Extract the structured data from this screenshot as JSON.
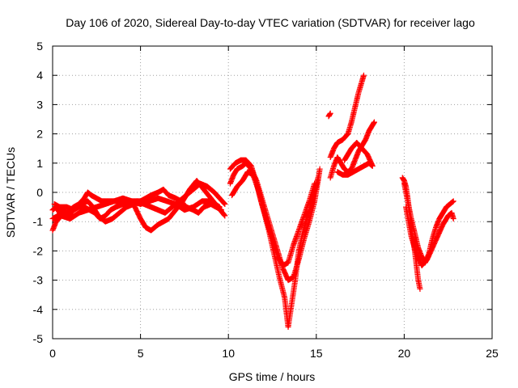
{
  "chart_data": {
    "type": "scatter",
    "title": "Day 106 of 2020, Sidereal Day-to-day VTEC variation (SDTVAR) for receiver lago",
    "xlabel": "GPS time / hours",
    "ylabel": "SDTVAR / TECUs",
    "xlim": [
      0,
      25
    ],
    "ylim": [
      -5,
      5
    ],
    "xticks": [
      "0",
      "5",
      "10",
      "15",
      "20",
      "25"
    ],
    "yticks": [
      "-5",
      "-4",
      "-3",
      "-2",
      "-1",
      "0",
      "1",
      "2",
      "3",
      "4",
      "5"
    ],
    "grid": true,
    "marker": "+",
    "color": "#ff0000",
    "series": [
      {
        "values": [
          [
            0.0,
            -0.6
          ],
          [
            0.2,
            -0.5
          ],
          [
            0.4,
            -0.7
          ],
          [
            0.6,
            -0.6
          ],
          [
            0.8,
            -0.7
          ],
          [
            1.0,
            -0.6
          ],
          [
            1.2,
            -0.5
          ],
          [
            1.5,
            -0.4
          ],
          [
            1.8,
            -0.2
          ],
          [
            2.0,
            0.0
          ],
          [
            2.2,
            -0.1
          ],
          [
            2.5,
            -0.2
          ],
          [
            2.8,
            -0.3
          ],
          [
            3.0,
            -0.3
          ],
          [
            3.3,
            -0.3
          ],
          [
            3.6,
            -0.3
          ],
          [
            4.0,
            -0.3
          ],
          [
            4.3,
            -0.3
          ],
          [
            4.6,
            -0.3
          ],
          [
            5.0,
            -0.3
          ],
          [
            5.3,
            -0.2
          ],
          [
            5.6,
            -0.1
          ],
          [
            6.0,
            0.0
          ],
          [
            6.3,
            0.1
          ],
          [
            6.6,
            -0.1
          ],
          [
            7.0,
            -0.2
          ],
          [
            7.3,
            -0.3
          ],
          [
            7.6,
            -0.5
          ],
          [
            8.0,
            -0.6
          ],
          [
            8.3,
            -0.7
          ],
          [
            8.6,
            -0.5
          ],
          [
            9.0,
            -0.4
          ],
          [
            9.3,
            -0.5
          ],
          [
            9.6,
            -0.6
          ]
        ]
      },
      {
        "values": [
          [
            0.0,
            -0.9
          ],
          [
            0.3,
            -0.8
          ],
          [
            0.6,
            -0.7
          ],
          [
            0.9,
            -0.8
          ],
          [
            1.2,
            -0.6
          ],
          [
            1.5,
            -0.5
          ],
          [
            1.8,
            -0.5
          ],
          [
            2.1,
            -0.6
          ],
          [
            2.4,
            -0.7
          ],
          [
            2.7,
            -0.9
          ],
          [
            3.0,
            -0.8
          ],
          [
            3.3,
            -0.6
          ],
          [
            3.6,
            -0.5
          ],
          [
            4.0,
            -0.4
          ],
          [
            4.4,
            -0.4
          ],
          [
            4.8,
            -0.3
          ],
          [
            5.2,
            -0.4
          ],
          [
            5.6,
            -0.5
          ],
          [
            6.0,
            -0.6
          ],
          [
            6.4,
            -0.7
          ],
          [
            6.8,
            -0.5
          ],
          [
            7.2,
            -0.3
          ],
          [
            7.6,
            -0.1
          ],
          [
            8.0,
            0.1
          ],
          [
            8.4,
            0.3
          ],
          [
            8.8,
            0.2
          ],
          [
            9.2,
            0.0
          ],
          [
            9.5,
            -0.2
          ],
          [
            9.8,
            -0.4
          ]
        ]
      },
      {
        "values": [
          [
            0.1,
            -0.4
          ],
          [
            0.4,
            -0.5
          ],
          [
            0.8,
            -0.5
          ],
          [
            1.2,
            -0.6
          ],
          [
            1.6,
            -0.4
          ],
          [
            2.0,
            -0.3
          ],
          [
            2.3,
            -0.5
          ],
          [
            2.6,
            -0.8
          ],
          [
            3.0,
            -1.0
          ],
          [
            3.4,
            -0.9
          ],
          [
            3.8,
            -0.7
          ],
          [
            4.2,
            -0.5
          ],
          [
            4.6,
            -0.4
          ],
          [
            5.0,
            -0.9
          ],
          [
            5.3,
            -1.2
          ],
          [
            5.6,
            -1.3
          ],
          [
            6.0,
            -1.1
          ],
          [
            6.3,
            -1.0
          ],
          [
            6.6,
            -0.9
          ],
          [
            7.0,
            -0.6
          ],
          [
            7.4,
            -0.3
          ],
          [
            7.8,
            0.1
          ],
          [
            8.2,
            0.4
          ],
          [
            8.6,
            0.1
          ],
          [
            9.0,
            -0.2
          ],
          [
            9.4,
            -0.5
          ],
          [
            9.8,
            -0.8
          ]
        ]
      },
      {
        "values": [
          [
            0.0,
            -1.3
          ],
          [
            0.2,
            -1.0
          ],
          [
            0.5,
            -0.8
          ],
          [
            1.0,
            -0.9
          ],
          [
            1.5,
            -0.7
          ],
          [
            2.0,
            -0.6
          ],
          [
            2.5,
            -0.5
          ],
          [
            3.0,
            -0.4
          ],
          [
            3.5,
            -0.3
          ],
          [
            4.0,
            -0.2
          ],
          [
            4.5,
            -0.3
          ],
          [
            5.0,
            -0.4
          ],
          [
            5.5,
            -0.3
          ],
          [
            6.0,
            -0.2
          ],
          [
            6.5,
            -0.3
          ],
          [
            7.0,
            -0.4
          ],
          [
            7.5,
            -0.6
          ],
          [
            8.0,
            -0.5
          ],
          [
            8.5,
            -0.3
          ],
          [
            9.0,
            -0.3
          ],
          [
            9.5,
            -0.5
          ]
        ]
      },
      {
        "values": [
          [
            10.1,
            0.3
          ],
          [
            10.3,
            0.6
          ],
          [
            10.5,
            0.8
          ],
          [
            10.8,
            0.9
          ],
          [
            11.0,
            1.0
          ],
          [
            11.3,
            0.8
          ],
          [
            11.6,
            0.4
          ],
          [
            11.9,
            -0.2
          ],
          [
            12.2,
            -0.8
          ],
          [
            12.5,
            -1.4
          ],
          [
            12.8,
            -2.0
          ],
          [
            13.1,
            -2.6
          ],
          [
            13.4,
            -3.0
          ],
          [
            13.7,
            -2.9
          ],
          [
            14.0,
            -2.3
          ],
          [
            14.3,
            -1.6
          ],
          [
            14.6,
            -1.0
          ],
          [
            14.9,
            -0.3
          ],
          [
            15.1,
            0.4
          ],
          [
            15.2,
            0.8
          ]
        ]
      },
      {
        "values": [
          [
            10.2,
            -0.1
          ],
          [
            10.5,
            0.2
          ],
          [
            10.8,
            0.4
          ],
          [
            11.1,
            0.7
          ],
          [
            11.4,
            0.6
          ],
          [
            11.7,
            0.1
          ],
          [
            12.0,
            -0.6
          ],
          [
            12.3,
            -1.3
          ],
          [
            12.6,
            -2.1
          ],
          [
            12.9,
            -2.9
          ],
          [
            13.2,
            -3.6
          ],
          [
            13.4,
            -4.6
          ],
          [
            13.6,
            -3.8
          ],
          [
            13.8,
            -3.0
          ],
          [
            14.0,
            -2.0
          ],
          [
            14.3,
            -1.2
          ],
          [
            14.6,
            -0.6
          ],
          [
            14.9,
            0.0
          ],
          [
            15.1,
            0.5
          ]
        ]
      },
      {
        "values": [
          [
            10.1,
            0.8
          ],
          [
            10.4,
            1.0
          ],
          [
            10.7,
            1.1
          ],
          [
            11.0,
            1.1
          ],
          [
            11.3,
            0.9
          ],
          [
            11.6,
            0.3
          ],
          [
            11.9,
            -0.4
          ],
          [
            12.2,
            -1.0
          ],
          [
            12.5,
            -1.6
          ],
          [
            12.8,
            -2.2
          ],
          [
            13.1,
            -2.5
          ],
          [
            13.4,
            -2.4
          ],
          [
            13.7,
            -1.8
          ],
          [
            14.0,
            -1.3
          ],
          [
            14.3,
            -0.8
          ],
          [
            14.6,
            -0.3
          ],
          [
            14.9,
            0.3
          ]
        ]
      },
      {
        "values": [
          [
            15.7,
            2.6
          ],
          [
            15.8,
            2.7
          ]
        ]
      },
      {
        "values": [
          [
            15.8,
            1.2
          ],
          [
            16.0,
            1.5
          ],
          [
            16.2,
            1.7
          ],
          [
            16.5,
            1.8
          ],
          [
            16.8,
            2.0
          ],
          [
            17.0,
            2.4
          ],
          [
            17.2,
            2.9
          ],
          [
            17.4,
            3.4
          ],
          [
            17.6,
            3.8
          ],
          [
            17.7,
            4.0
          ]
        ]
      },
      {
        "values": [
          [
            15.8,
            0.5
          ],
          [
            16.0,
            0.9
          ],
          [
            16.2,
            1.2
          ],
          [
            16.4,
            1.0
          ],
          [
            16.6,
            0.8
          ],
          [
            16.8,
            0.7
          ],
          [
            17.0,
            0.8
          ],
          [
            17.2,
            1.1
          ],
          [
            17.4,
            1.4
          ],
          [
            17.6,
            1.6
          ],
          [
            17.8,
            1.8
          ],
          [
            18.0,
            2.1
          ],
          [
            18.2,
            2.3
          ],
          [
            18.3,
            2.4
          ]
        ]
      },
      {
        "values": [
          [
            16.2,
            0.7
          ],
          [
            16.5,
            0.6
          ],
          [
            16.8,
            0.6
          ],
          [
            17.1,
            0.7
          ],
          [
            17.4,
            0.8
          ],
          [
            17.7,
            0.9
          ],
          [
            18.0,
            1.0
          ],
          [
            18.2,
            0.9
          ],
          [
            17.9,
            1.3
          ],
          [
            17.6,
            1.5
          ],
          [
            17.3,
            1.7
          ],
          [
            17.0,
            1.5
          ],
          [
            16.8,
            1.3
          ],
          [
            16.6,
            1.1
          ]
        ]
      },
      {
        "values": [
          [
            19.9,
            0.5
          ],
          [
            20.0,
            0.4
          ],
          [
            20.1,
            0.2
          ],
          [
            20.2,
            -0.2
          ],
          [
            20.3,
            -0.7
          ],
          [
            20.4,
            -1.2
          ],
          [
            20.5,
            -1.6
          ],
          [
            20.6,
            -2.0
          ],
          [
            20.7,
            -2.5
          ],
          [
            20.8,
            -3.0
          ],
          [
            20.9,
            -3.3
          ]
        ]
      },
      {
        "values": [
          [
            20.0,
            0.3
          ],
          [
            20.2,
            -0.3
          ],
          [
            20.4,
            -0.9
          ],
          [
            20.6,
            -1.4
          ],
          [
            20.8,
            -1.9
          ],
          [
            21.0,
            -2.2
          ],
          [
            21.2,
            -2.4
          ],
          [
            21.4,
            -2.1
          ],
          [
            21.6,
            -1.6
          ],
          [
            21.8,
            -1.2
          ],
          [
            22.0,
            -0.9
          ],
          [
            22.2,
            -0.7
          ],
          [
            22.4,
            -0.5
          ],
          [
            22.6,
            -0.4
          ],
          [
            22.8,
            -0.3
          ]
        ]
      },
      {
        "values": [
          [
            20.1,
            -0.5
          ],
          [
            20.4,
            -1.5
          ],
          [
            20.7,
            -2.1
          ],
          [
            21.0,
            -2.5
          ],
          [
            21.3,
            -2.3
          ],
          [
            21.6,
            -1.9
          ],
          [
            21.9,
            -1.5
          ],
          [
            22.2,
            -1.1
          ],
          [
            22.5,
            -0.8
          ],
          [
            22.7,
            -0.7
          ],
          [
            22.8,
            -0.9
          ]
        ]
      }
    ]
  }
}
